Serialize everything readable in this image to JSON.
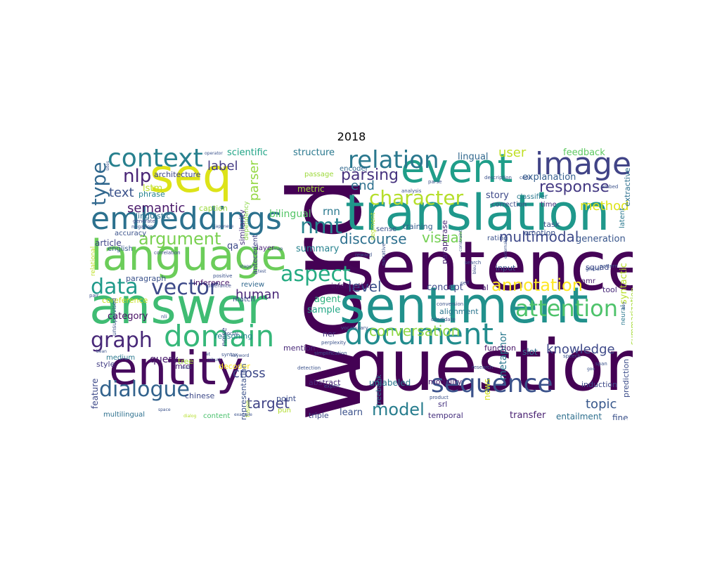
{
  "title": "2018",
  "words": [
    {
      "t": "word",
      "c": "#440154"
    },
    {
      "t": "sentence",
      "c": "#450457"
    },
    {
      "t": "question",
      "c": "#440154"
    },
    {
      "t": "sentiment",
      "c": "#21918c"
    },
    {
      "t": "translation",
      "c": "#1f988b"
    },
    {
      "t": "answer",
      "c": "#3fbc73"
    },
    {
      "t": "seq",
      "c": "#dde318"
    },
    {
      "t": "language",
      "c": "#6ccd5a"
    },
    {
      "t": "entity",
      "c": "#460a5d"
    },
    {
      "t": "event",
      "c": "#1f9e89"
    },
    {
      "t": "embeddings",
      "c": "#2c718e"
    },
    {
      "t": "document",
      "c": "#228c8d"
    },
    {
      "t": "image",
      "c": "#414487"
    },
    {
      "t": "domain",
      "c": "#35b779"
    },
    {
      "t": "context",
      "c": "#27808e"
    },
    {
      "t": "relation",
      "c": "#2a788e"
    },
    {
      "t": "sequence",
      "c": "#3b528b"
    },
    {
      "t": "dialogue",
      "c": "#33638d"
    },
    {
      "t": "graph",
      "c": "#482878"
    },
    {
      "t": "attention",
      "c": "#4ec36b"
    },
    {
      "t": "vector",
      "c": "#3e4a89"
    },
    {
      "t": "data",
      "c": "#1f9a8a"
    },
    {
      "t": "type",
      "c": "#31688e"
    },
    {
      "t": "nmt",
      "c": "#26828e"
    },
    {
      "t": "character",
      "c": "#b5de2b"
    },
    {
      "t": "argument",
      "c": "#7ad151"
    },
    {
      "t": "aspect",
      "c": "#25ab82"
    },
    {
      "t": "annotation",
      "c": "#fde725"
    },
    {
      "t": "response",
      "c": "#443983"
    },
    {
      "t": "nlp",
      "c": "#482475"
    },
    {
      "t": "model",
      "c": "#287d8e"
    },
    {
      "t": "conversation",
      "c": "#8fd744"
    },
    {
      "t": "knowledge",
      "c": "#3e4989"
    },
    {
      "t": "parsing",
      "c": "#46327e"
    },
    {
      "t": "text",
      "c": "#3b528b"
    },
    {
      "t": "semantic",
      "c": "#481769"
    },
    {
      "t": "discourse",
      "c": "#2d708e"
    },
    {
      "t": "multimodal",
      "c": "#3e4989"
    },
    {
      "t": "topic",
      "c": "#38588c"
    },
    {
      "t": "human",
      "c": "#482677"
    },
    {
      "t": "level",
      "c": "#3b528b"
    },
    {
      "t": "target",
      "c": "#414487"
    },
    {
      "t": "visual",
      "c": "#75d054"
    },
    {
      "t": "label",
      "c": "#443a83"
    },
    {
      "t": "user",
      "c": "#c0df25"
    },
    {
      "t": "end",
      "c": "#2d708e"
    },
    {
      "t": "parser",
      "c": "#93d741"
    },
    {
      "t": "method",
      "c": "#dde318"
    },
    {
      "t": "metaphor",
      "c": "#2a788e"
    },
    {
      "t": "scientific",
      "c": "#20a486"
    },
    {
      "t": "structure",
      "c": "#2a788e"
    },
    {
      "t": "lingual",
      "c": "#31688e"
    },
    {
      "t": "feedback",
      "c": "#5ec962"
    },
    {
      "t": "story",
      "c": "#3e4989"
    },
    {
      "t": "explanation",
      "c": "#355f8d"
    },
    {
      "t": "generation",
      "c": "#39568c"
    },
    {
      "t": "bilingual",
      "c": "#55c667"
    },
    {
      "t": "rnn",
      "c": "#2a788e"
    },
    {
      "t": "summary",
      "c": "#26828e"
    },
    {
      "t": "concept",
      "c": "#3e4a89"
    },
    {
      "t": "sample",
      "c": "#22a785"
    },
    {
      "t": "agent",
      "c": "#2db27d"
    },
    {
      "t": "cross",
      "c": "#3e4989"
    },
    {
      "t": "query",
      "c": "#481a6c"
    },
    {
      "t": "category",
      "c": "#471063"
    },
    {
      "t": "learn",
      "c": "#3b528b"
    },
    {
      "t": "transfer",
      "c": "#482071"
    },
    {
      "t": "entailment",
      "c": "#2e6f8e"
    },
    {
      "t": "fine",
      "c": "#3b528b"
    },
    {
      "t": "lstm",
      "c": "#bddf26"
    },
    {
      "t": "caption",
      "c": "#9bd93c"
    },
    {
      "t": "inference",
      "c": "#481467"
    },
    {
      "t": "match",
      "c": "#3b528b"
    },
    {
      "t": "review",
      "c": "#31688e"
    },
    {
      "t": "qa",
      "c": "#3e4a89"
    },
    {
      "t": "layer",
      "c": "#482475"
    },
    {
      "t": "reasoning",
      "c": "#25848e"
    },
    {
      "t": "article",
      "c": "#404588"
    },
    {
      "t": "english",
      "c": "#38588c"
    },
    {
      "t": "paragraph",
      "c": "#3b528b"
    },
    {
      "t": "linguistic",
      "c": "#2c728e"
    },
    {
      "t": "accuracy",
      "c": "#3b528b"
    },
    {
      "t": "architecture",
      "c": "#3f4788"
    },
    {
      "t": "phrase",
      "c": "#26828e"
    },
    {
      "t": "coreference",
      "c": "#c8e020"
    },
    {
      "t": "medium",
      "c": "#2a788e"
    },
    {
      "t": "style",
      "c": "#433e85"
    },
    {
      "t": "mrc",
      "c": "#481f70"
    },
    {
      "t": "feature",
      "c": "#3e4a89"
    },
    {
      "t": "multilingual",
      "c": "#2d708e"
    },
    {
      "t": "chinese",
      "c": "#3e4a89"
    },
    {
      "t": "content",
      "c": "#4ac16d"
    },
    {
      "t": "point",
      "c": "#3d4e8a"
    },
    {
      "t": "triple",
      "c": "#3e4a89"
    },
    {
      "t": "srl",
      "c": "#46337f"
    },
    {
      "t": "ner",
      "c": "#463480"
    },
    {
      "t": "mention",
      "c": "#482878"
    },
    {
      "t": "abstract",
      "c": "#482878"
    },
    {
      "t": "unlabeled",
      "c": "#2a788e"
    },
    {
      "t": "treebank",
      "c": "#2b748e"
    },
    {
      "t": "tree",
      "c": "#a2da37"
    },
    {
      "t": "decoder",
      "c": "#fde725"
    },
    {
      "t": "modality",
      "c": "#481b6d"
    },
    {
      "t": "temporal",
      "c": "#46307e"
    },
    {
      "t": "news",
      "c": "#d5e21a"
    },
    {
      "t": "induction",
      "c": "#3e4a89"
    },
    {
      "t": "slot",
      "c": "#2f6c8e"
    },
    {
      "t": "function",
      "c": "#481668"
    },
    {
      "t": "alignment",
      "c": "#2b758e"
    },
    {
      "t": "emotion",
      "c": "#3b528b"
    },
    {
      "t": "tool",
      "c": "#482979"
    },
    {
      "t": "squad",
      "c": "#3e4989"
    },
    {
      "t": "amr",
      "c": "#481d6f"
    },
    {
      "t": "input",
      "c": "#3b528b"
    },
    {
      "t": "task",
      "c": "#3b528b"
    },
    {
      "t": "time",
      "c": "#46327e"
    },
    {
      "t": "correction",
      "c": "#3d4e8a"
    },
    {
      "t": "classifier",
      "c": "#2a788e"
    },
    {
      "t": "al",
      "c": "#481b6d"
    },
    {
      "t": "training",
      "c": "#355f8d"
    },
    {
      "t": "sense",
      "c": "#3b528b"
    },
    {
      "t": "information",
      "c": "#471164"
    },
    {
      "t": "metric",
      "c": "#a0da39"
    },
    {
      "t": "passage",
      "c": "#9dd93b"
    },
    {
      "t": "encoder",
      "c": "#31688e"
    },
    {
      "t": "rating",
      "c": "#3b528b"
    },
    {
      "t": "prediction",
      "c": "#3d4e8a"
    },
    {
      "t": "summarization",
      "c": "#a5db36"
    },
    {
      "t": "syntactic",
      "c": "#b8de29"
    },
    {
      "t": "extractive",
      "c": "#2d708e"
    },
    {
      "t": "similarity",
      "c": "#46307e"
    },
    {
      "t": "dependency",
      "c": "#8bd646"
    },
    {
      "t": "antecedent",
      "c": "#414487"
    },
    {
      "t": "representation",
      "c": "#3b528b"
    },
    {
      "t": "paraphrase",
      "c": "#482475"
    },
    {
      "t": "noise",
      "c": "#3e4a89"
    },
    {
      "t": "segment",
      "c": "#b5de2b"
    },
    {
      "t": "relational",
      "c": "#bddf26"
    },
    {
      "t": "pun",
      "c": "#b2dd2d"
    },
    {
      "t": "latent",
      "c": "#2a788e"
    },
    {
      "t": "neural",
      "c": "#2a788e"
    },
    {
      "t": "fusion",
      "c": "#b5de2b"
    },
    {
      "t": "unsupervised",
      "c": "#3b528b"
    },
    {
      "t": "positive",
      "c": "#3b528b"
    },
    {
      "t": "negation",
      "c": "#3b528b"
    },
    {
      "t": "generate",
      "c": "#3e4a89"
    },
    {
      "t": "correlation",
      "c": "#3e4a89"
    },
    {
      "t": "japanese",
      "c": "#3b528b"
    },
    {
      "t": "utterance",
      "c": "#3e4a89"
    },
    {
      "t": "stage",
      "c": "#3b528b"
    },
    {
      "t": "social",
      "c": "#3b528b"
    },
    {
      "t": "nli",
      "c": "#3b528b"
    },
    {
      "t": "pair",
      "c": "#3b528b"
    },
    {
      "t": "sites",
      "c": "#3b528b"
    },
    {
      "t": "bean",
      "c": "#3b528b"
    },
    {
      "t": "multi",
      "c": "#3b528b"
    },
    {
      "t": "space",
      "c": "#3b528b"
    },
    {
      "t": "syntax",
      "c": "#3b528b"
    },
    {
      "t": "example",
      "c": "#3b528b"
    },
    {
      "t": "dialog",
      "c": "#b5de2b"
    },
    {
      "t": "expert",
      "c": "#3b528b"
    },
    {
      "t": "detection",
      "c": "#3b528b"
    },
    {
      "t": "perplexity",
      "c": "#3b528b"
    },
    {
      "t": "candidate",
      "c": "#3b528b"
    },
    {
      "t": "vocabulary",
      "c": "#3b528b"
    },
    {
      "t": "simplification",
      "c": "#3b528b"
    },
    {
      "t": "conversion",
      "c": "#3b528b"
    },
    {
      "t": "research",
      "c": "#3b528b"
    },
    {
      "t": "product",
      "c": "#3b528b"
    },
    {
      "t": "speech",
      "c": "#3b528b"
    },
    {
      "t": "search",
      "c": "#3b528b"
    },
    {
      "t": "span",
      "c": "#3b528b"
    },
    {
      "t": "global",
      "c": "#3b528b"
    },
    {
      "t": "pattern",
      "c": "#3b528b"
    },
    {
      "t": "self",
      "c": "#3b528b"
    },
    {
      "t": "description",
      "c": "#3b528b"
    },
    {
      "t": "code",
      "c": "#3b528b"
    },
    {
      "t": "embed",
      "c": "#3b528b"
    },
    {
      "t": "analysis",
      "c": "#3b528b"
    },
    {
      "t": "parse",
      "c": "#3b528b"
    },
    {
      "t": "reward",
      "c": "#3b528b"
    },
    {
      "t": "narrative",
      "c": "#3b528b"
    },
    {
      "t": "constraint",
      "c": "#3b528b"
    },
    {
      "t": "external",
      "c": "#3b528b"
    },
    {
      "t": "operator",
      "c": "#3b528b"
    },
    {
      "t": "robust",
      "c": "#3b528b"
    },
    {
      "t": "keyword",
      "c": "#3b528b"
    },
    {
      "t": "test",
      "c": "#3b528b"
    },
    {
      "t": "map",
      "c": "#3b528b"
    },
    {
      "t": "et",
      "c": "#3b528b"
    },
    {
      "t": "bleu",
      "c": "#3b528b"
    },
    {
      "t": "goo",
      "c": "#3b528b"
    },
    {
      "t": "key",
      "c": "#3b528b"
    }
  ]
}
